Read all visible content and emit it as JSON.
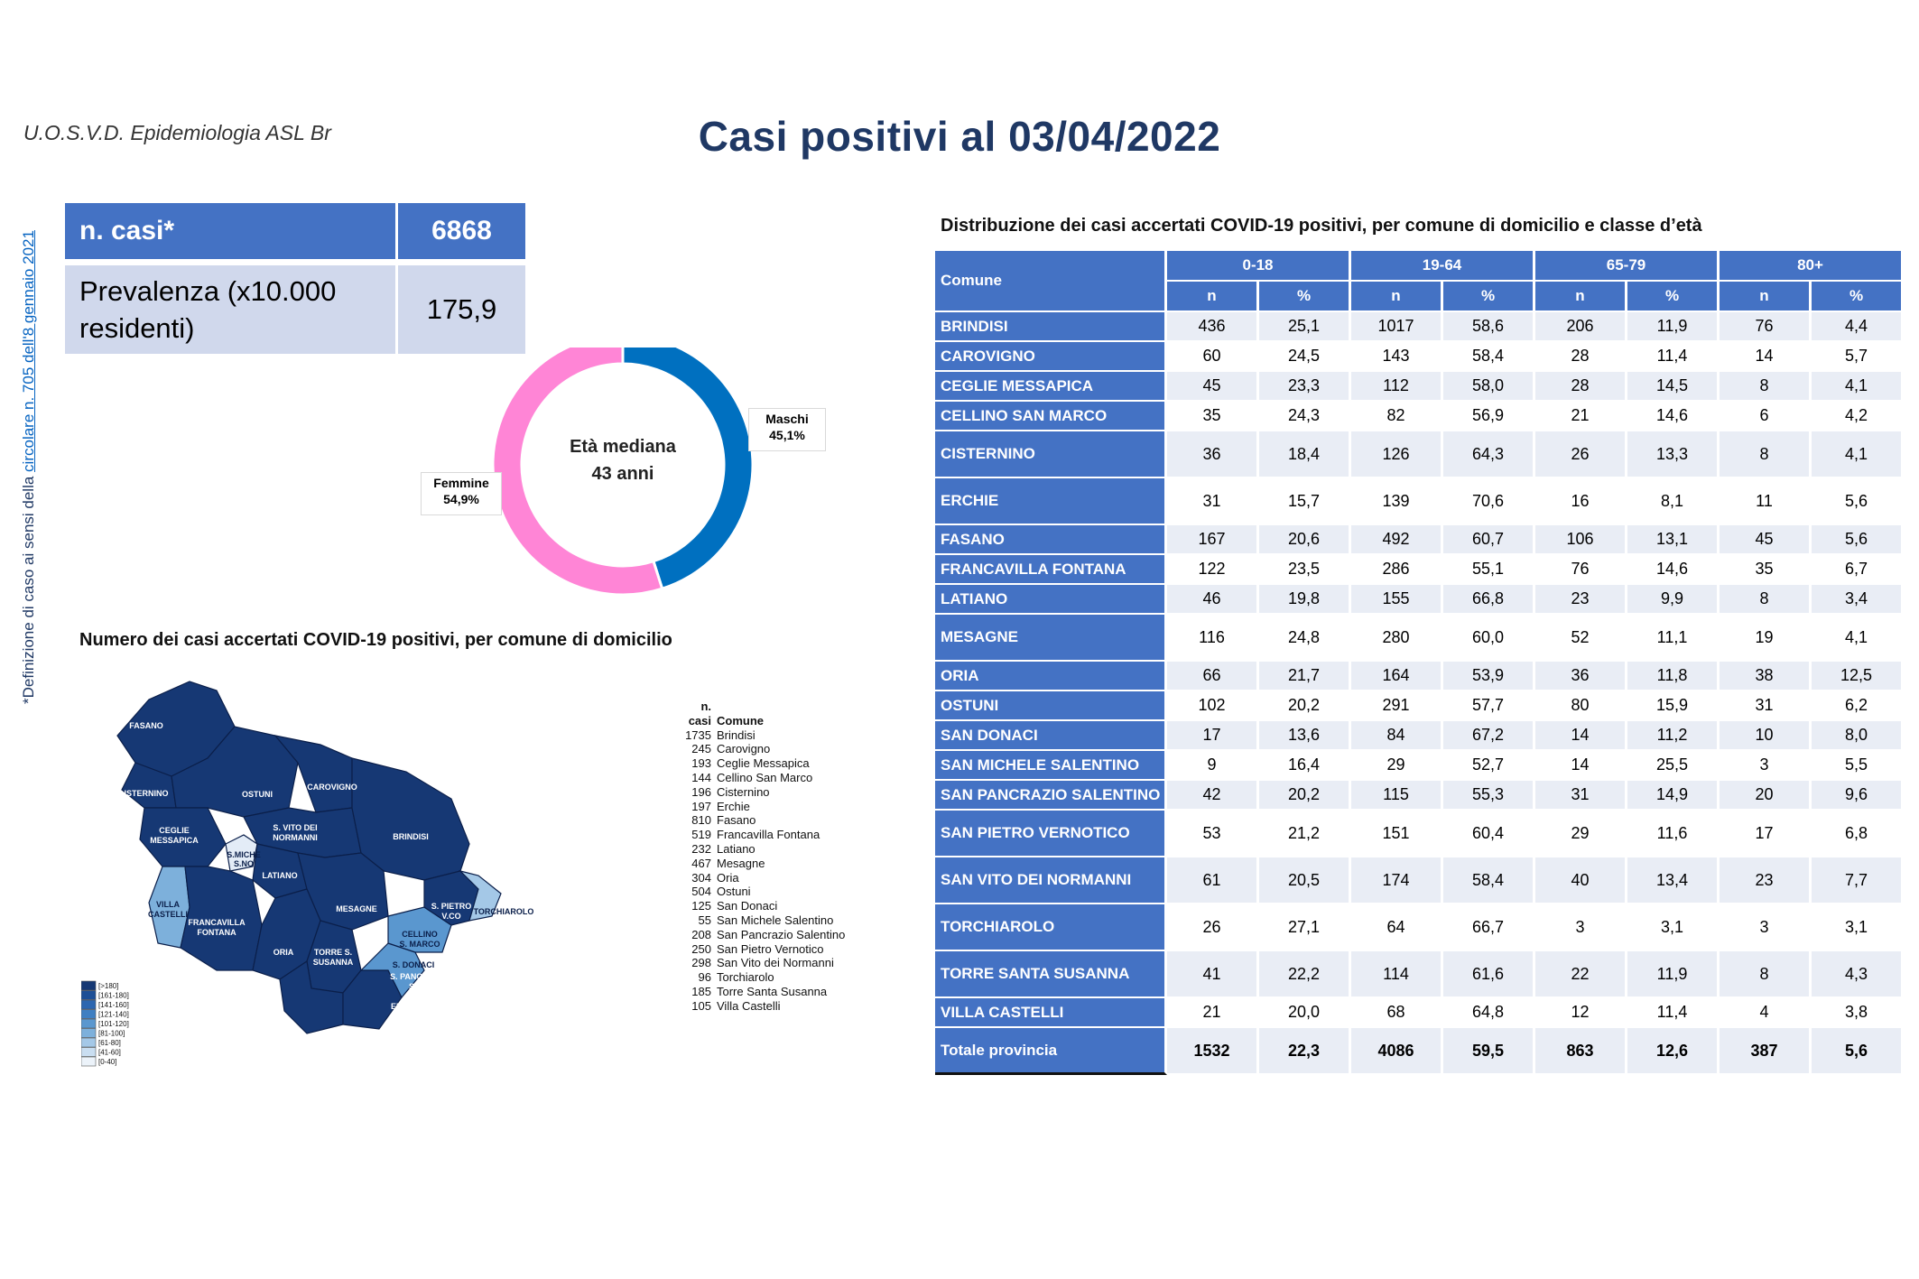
{
  "header": {
    "organization": "U.O.S.V.D. Epidemiologia ASL Br",
    "title": "Casi positivi al 03/04/2022",
    "side_note_prefix": "*Definizione di caso ai sensi della ",
    "side_note_link": "circolare n. 705 dell'8 gennaio 2021"
  },
  "kpi": {
    "cases_label": "n. casi*",
    "cases_value": "6868",
    "prevalence_label": "Prevalenza (x10.000 residenti)",
    "prevalence_value": "175,9"
  },
  "chart_data": [
    {
      "type": "pie",
      "variant": "donut",
      "center_label_line1": "Età mediana",
      "center_label_line2": "43 anni",
      "slices": [
        {
          "name": "Maschi",
          "value": 45.1,
          "label": "45,1%",
          "color": "#0070c0"
        },
        {
          "name": "Femmine",
          "value": 54.9,
          "label": "54,9%",
          "color": "#ff85d6"
        }
      ]
    },
    {
      "type": "table",
      "title": "Distribuzione dei casi accertati COVID-19 positivi, per comune di domicilio e classe d’età",
      "columns": {
        "comune": "Comune",
        "age_groups": [
          "0-18",
          "19-64",
          "65-79",
          "80+"
        ],
        "sub": [
          "n",
          "%"
        ]
      },
      "rows": [
        {
          "comune": "BRINDISI",
          "values": [
            "436",
            "25,1",
            "1017",
            "58,6",
            "206",
            "11,9",
            "76",
            "4,4"
          ],
          "h": 1
        },
        {
          "comune": "CAROVIGNO",
          "values": [
            "60",
            "24,5",
            "143",
            "58,4",
            "28",
            "11,4",
            "14",
            "5,7"
          ],
          "h": 1
        },
        {
          "comune": "CEGLIE MESSAPICA",
          "values": [
            "45",
            "23,3",
            "112",
            "58,0",
            "28",
            "14,5",
            "8",
            "4,1"
          ],
          "h": 1
        },
        {
          "comune": "CELLINO SAN MARCO",
          "values": [
            "35",
            "24,3",
            "82",
            "56,9",
            "21",
            "14,6",
            "6",
            "4,2"
          ],
          "h": 1
        },
        {
          "comune": "CISTERNINO",
          "values": [
            "36",
            "18,4",
            "126",
            "64,3",
            "26",
            "13,3",
            "8",
            "4,1"
          ],
          "h": 2
        },
        {
          "comune": "ERCHIE",
          "values": [
            "31",
            "15,7",
            "139",
            "70,6",
            "16",
            "8,1",
            "11",
            "5,6"
          ],
          "h": 2
        },
        {
          "comune": "FASANO",
          "values": [
            "167",
            "20,6",
            "492",
            "60,7",
            "106",
            "13,1",
            "45",
            "5,6"
          ],
          "h": 1
        },
        {
          "comune": "FRANCAVILLA FONTANA",
          "values": [
            "122",
            "23,5",
            "286",
            "55,1",
            "76",
            "14,6",
            "35",
            "6,7"
          ],
          "h": 1
        },
        {
          "comune": "LATIANO",
          "values": [
            "46",
            "19,8",
            "155",
            "66,8",
            "23",
            "9,9",
            "8",
            "3,4"
          ],
          "h": 1
        },
        {
          "comune": "MESAGNE",
          "values": [
            "116",
            "24,8",
            "280",
            "60,0",
            "52",
            "11,1",
            "19",
            "4,1"
          ],
          "h": 2
        },
        {
          "comune": "ORIA",
          "values": [
            "66",
            "21,7",
            "164",
            "53,9",
            "36",
            "11,8",
            "38",
            "12,5"
          ],
          "h": 1
        },
        {
          "comune": "OSTUNI",
          "values": [
            "102",
            "20,2",
            "291",
            "57,7",
            "80",
            "15,9",
            "31",
            "6,2"
          ],
          "h": 1
        },
        {
          "comune": "SAN DONACI",
          "values": [
            "17",
            "13,6",
            "84",
            "67,2",
            "14",
            "11,2",
            "10",
            "8,0"
          ],
          "h": 1
        },
        {
          "comune": "SAN MICHELE SALENTINO",
          "values": [
            "9",
            "16,4",
            "29",
            "52,7",
            "14",
            "25,5",
            "3",
            "5,5"
          ],
          "h": 1
        },
        {
          "comune": "SAN PANCRAZIO SALENTINO",
          "values": [
            "42",
            "20,2",
            "115",
            "55,3",
            "31",
            "14,9",
            "20",
            "9,6"
          ],
          "h": 1
        },
        {
          "comune": "SAN PIETRO VERNOTICO",
          "values": [
            "53",
            "21,2",
            "151",
            "60,4",
            "29",
            "11,6",
            "17",
            "6,8"
          ],
          "h": 2
        },
        {
          "comune": "SAN VITO DEI NORMANNI",
          "values": [
            "61",
            "20,5",
            "174",
            "58,4",
            "40",
            "13,4",
            "23",
            "7,7"
          ],
          "h": 2
        },
        {
          "comune": "TORCHIAROLO",
          "values": [
            "26",
            "27,1",
            "64",
            "66,7",
            "3",
            "3,1",
            "3",
            "3,1"
          ],
          "h": 2
        },
        {
          "comune": "TORRE SANTA SUSANNA",
          "values": [
            "41",
            "22,2",
            "114",
            "61,6",
            "22",
            "11,9",
            "8",
            "4,3"
          ],
          "h": 2
        },
        {
          "comune": "VILLA CASTELLI",
          "values": [
            "21",
            "20,0",
            "68",
            "64,8",
            "12",
            "11,4",
            "4",
            "3,8"
          ],
          "h": 1
        }
      ],
      "total": {
        "comune": "Totale provincia",
        "values": [
          "1532",
          "22,3",
          "4086",
          "59,5",
          "863",
          "12,6",
          "387",
          "5,6"
        ]
      }
    }
  ],
  "map": {
    "title": "Numero dei casi accertati COVID-19 positivi, per comune di domicilio",
    "labels": {
      "fasano": "FASANO",
      "cisternino": "ISTERNINO",
      "ostuni": "OSTUNI",
      "carovigno": "CAROVIGNO",
      "ceglie": "CEGLIE",
      "ceglie2": "MESSAPICA",
      "svito": "S. VITO DEI",
      "svito2": "NORMANNI",
      "brindisi": "BRINDISI",
      "smichele": "S.MICHE",
      "smichele2": "S.NO",
      "latiano": "LATIANO",
      "villa": "VILLA",
      "villa2": "CASTELLI",
      "francavilla": "FRANCAVILLA",
      "francavilla2": "FONTANA",
      "mesagne": "MESAGNE",
      "oria": "ORIA",
      "torre": "TORRE S.",
      "torre2": "SUSANNA",
      "cellino": "CELLINO",
      "cellino2": "S. MARCO",
      "sdonaci": "S. DONACI",
      "spietro": "S. PIETRO",
      "spietro2": "V.CO",
      "torchiarolo": "TORCHIAROLO",
      "spancrazio": "S. PANCRAZIO",
      "spancrazio2": "S.NO",
      "erchie": "ERCHIE"
    },
    "legend_classes": [
      "[>180]",
      "[161-180]",
      "[141-160]",
      "[121-140]",
      "[101-120]",
      "[81-100]",
      "[61-80]",
      "[41-60]",
      "[0-40]"
    ],
    "legend_colors": [
      "#163874",
      "#1e4f96",
      "#2c66b0",
      "#3f7fc2",
      "#5a97cf",
      "#7db0db",
      "#a4c8e7",
      "#c9def1",
      "#ecf3fa"
    ],
    "list_header_n": "n. casi",
    "list_header_c": "Comune",
    "list": [
      {
        "n": "1735",
        "c": "Brindisi"
      },
      {
        "n": "245",
        "c": "Carovigno"
      },
      {
        "n": "193",
        "c": "Ceglie Messapica"
      },
      {
        "n": "144",
        "c": "Cellino San Marco"
      },
      {
        "n": "196",
        "c": "Cisternino"
      },
      {
        "n": "197",
        "c": "Erchie"
      },
      {
        "n": "810",
        "c": "Fasano"
      },
      {
        "n": "519",
        "c": "Francavilla Fontana"
      },
      {
        "n": "232",
        "c": "Latiano"
      },
      {
        "n": "467",
        "c": "Mesagne"
      },
      {
        "n": "304",
        "c": "Oria"
      },
      {
        "n": "504",
        "c": "Ostuni"
      },
      {
        "n": "125",
        "c": "San Donaci"
      },
      {
        "n": "55",
        "c": "San Michele Salentino"
      },
      {
        "n": "208",
        "c": "San Pancrazio Salentino"
      },
      {
        "n": "250",
        "c": "San Pietro Vernotico"
      },
      {
        "n": "298",
        "c": "San Vito dei Normanni"
      },
      {
        "n": "96",
        "c": "Torchiarolo"
      },
      {
        "n": "185",
        "c": "Torre Santa Susanna"
      },
      {
        "n": "105",
        "c": "Villa Castelli"
      }
    ]
  },
  "colors": {
    "primary": "#4472c4",
    "title": "#1f3864",
    "map_dark": "#163874",
    "map_mid": "#5a97cf",
    "map_light": "#a4c8e7"
  }
}
